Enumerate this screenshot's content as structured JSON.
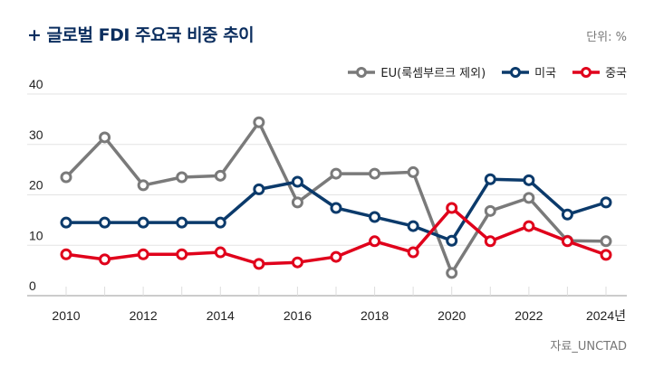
{
  "chart_data": {
    "type": "line",
    "title": "+ 글로벌 FDI 주요국 비중 추이",
    "unit_label": "단위: %",
    "source": "자료_UNCTAD",
    "ylim": [
      0,
      40
    ],
    "yticks": [
      "0",
      "10",
      "20",
      "30",
      "40"
    ],
    "x": [
      2010,
      2011,
      2012,
      2013,
      2014,
      2015,
      2016,
      2017,
      2018,
      2019,
      2020,
      2021,
      2022,
      2023,
      2024
    ],
    "xtick_labels": [
      "2010",
      "2012",
      "2014",
      "2016",
      "2018",
      "2020",
      "2022",
      "2024년"
    ],
    "legend_position": "top-right",
    "grid": true,
    "series": [
      {
        "name": "EU(룩셈부르크 제외)",
        "color": "#7a7a7a",
        "values": [
          23.5,
          31.4,
          21.9,
          23.5,
          23.8,
          34.4,
          18.5,
          24.2,
          24.2,
          24.5,
          4.5,
          16.8,
          19.4,
          10.9,
          10.8
        ]
      },
      {
        "name": "미국",
        "color": "#0b3a6b",
        "values": [
          14.5,
          14.5,
          14.5,
          14.5,
          14.5,
          21.1,
          22.6,
          17.4,
          15.6,
          13.8,
          10.9,
          23.1,
          22.9,
          16.1,
          18.5
        ]
      },
      {
        "name": "중국",
        "color": "#e0001b",
        "values": [
          8.2,
          7.2,
          8.2,
          8.2,
          8.6,
          6.3,
          6.6,
          7.7,
          10.8,
          8.6,
          17.4,
          10.8,
          13.8,
          10.8,
          8.1
        ]
      }
    ]
  }
}
